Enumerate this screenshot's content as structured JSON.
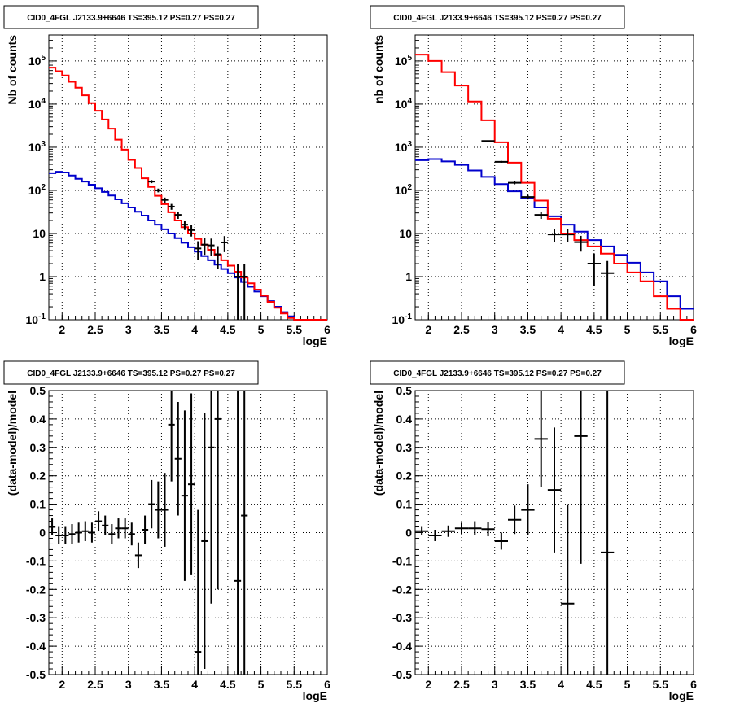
{
  "chart_data": [
    {
      "panel": "top-left",
      "type": "line",
      "title": "CID0_4FGL J2133.9+6646 TS=395.12 PS=0.27 PS=0.27",
      "xlabel": "logE",
      "ylabel": "Nb of counts",
      "yscale": "log",
      "xlim": [
        1.8,
        6.0
      ],
      "ylim": [
        0.1,
        400000
      ],
      "xticks": [
        "2",
        "2.5",
        "3",
        "3.5",
        "4",
        "4.5",
        "5",
        "5.5",
        "6"
      ],
      "yticks": [
        "10^-1",
        "1",
        "10",
        "10^2",
        "10^3",
        "10^4",
        "10^5"
      ],
      "grid": true,
      "series_colors": {
        "total_model": "#ff0000",
        "source_model": "#0000cc",
        "data": "#000000"
      },
      "bin_edges": [
        1.8,
        1.9,
        2.0,
        2.1,
        2.2,
        2.3,
        2.4,
        2.5,
        2.6,
        2.7,
        2.8,
        2.9,
        3.0,
        3.1,
        3.2,
        3.3,
        3.4,
        3.5,
        3.6,
        3.7,
        3.8,
        3.9,
        4.0,
        4.1,
        4.2,
        4.3,
        4.4,
        4.5,
        4.6,
        4.7,
        4.8,
        4.9,
        5.0,
        5.1,
        5.2,
        5.3,
        5.4,
        5.5,
        5.6,
        5.7,
        5.8,
        5.9,
        6.0
      ],
      "total_model": [
        70000,
        58000,
        46000,
        33000,
        24000,
        16000,
        10500,
        7000,
        4400,
        2700,
        1500,
        880,
        510,
        330,
        190,
        120,
        75,
        48,
        31,
        20,
        14,
        10,
        7.5,
        5.5,
        4.2,
        3.2,
        2.4,
        1.8,
        1.3,
        0.95,
        0.7,
        0.5,
        0.36,
        0.26,
        0.19,
        0.14,
        0.11,
        0.1,
        0.1,
        0.1,
        0.1,
        0.1
      ],
      "source_model": [
        250,
        270,
        260,
        220,
        185,
        160,
        135,
        112,
        92,
        76,
        62,
        50,
        40,
        32,
        26,
        20,
        16,
        12.5,
        10,
        7.8,
        6.1,
        4.8,
        3.8,
        3.0,
        2.4,
        1.9,
        1.5,
        1.2,
        0.95,
        0.75,
        0.58,
        0.45,
        0.35,
        0.27,
        0.2,
        0.15,
        0.12,
        0.1,
        0.1,
        0.1,
        0.1,
        0.1
      ],
      "data_points": [
        {
          "x": 3.35,
          "y": 160,
          "err": 13
        },
        {
          "x": 3.45,
          "y": 100,
          "err": 10
        },
        {
          "x": 3.55,
          "y": 60,
          "err": 8
        },
        {
          "x": 3.65,
          "y": 42,
          "err": 6.5
        },
        {
          "x": 3.75,
          "y": 27,
          "err": 5.2
        },
        {
          "x": 3.85,
          "y": 16,
          "err": 4
        },
        {
          "x": 3.95,
          "y": 12,
          "err": 3.5
        },
        {
          "x": 4.05,
          "y": 4.5,
          "err": 2.1
        },
        {
          "x": 4.15,
          "y": 5.5,
          "err": 2.3
        },
        {
          "x": 4.25,
          "y": 5.3,
          "err": 2.3
        },
        {
          "x": 4.35,
          "y": 3.3,
          "err": 1.8
        },
        {
          "x": 4.45,
          "y": 6.2,
          "err": 2.5
        },
        {
          "x": 4.65,
          "y": 1.0,
          "err": 1.0
        },
        {
          "x": 4.75,
          "y": 1.0,
          "err": 1.0
        }
      ]
    },
    {
      "panel": "top-right",
      "type": "line",
      "title": "CID0_4FGL J2133.9+6646 TS=395.12 PS=0.27 PS=0.27",
      "xlabel": "logE",
      "ylabel": "nb of counts",
      "yscale": "log",
      "xlim": [
        1.8,
        6.0
      ],
      "ylim": [
        0.1,
        400000
      ],
      "xticks": [
        "2",
        "2.5",
        "3",
        "3.5",
        "4",
        "4.5",
        "5",
        "5.5",
        "6"
      ],
      "yticks": [
        "10^-1",
        "1",
        "10",
        "10^2",
        "10^3",
        "10^4",
        "10^5"
      ],
      "grid": true,
      "series_colors": {
        "total_model": "#ff0000",
        "source_model": "#0000cc",
        "data": "#000000"
      },
      "bin_edges": [
        1.8,
        2.0,
        2.2,
        2.4,
        2.6,
        2.8,
        3.0,
        3.2,
        3.4,
        3.6,
        3.8,
        4.0,
        4.2,
        4.4,
        4.6,
        4.8,
        5.0,
        5.2,
        5.4,
        5.6,
        5.8,
        6.0
      ],
      "total_model": [
        140000,
        100000,
        55000,
        27000,
        11500,
        4200,
        1300,
        440,
        150,
        58,
        22,
        10,
        7,
        5,
        3.4,
        2.0,
        1.25,
        0.78,
        0.35,
        0.18,
        0.1
      ],
      "source_model": [
        500,
        530,
        470,
        390,
        290,
        205,
        140,
        95,
        65,
        40,
        25,
        16,
        11,
        7,
        5,
        3.2,
        2.1,
        1.25,
        0.78,
        0.35,
        0.18
      ],
      "data_points": [
        {
          "x": 2.9,
          "y": 1400,
          "err": 38
        },
        {
          "x": 3.1,
          "y": 460,
          "err": 22
        },
        {
          "x": 3.3,
          "y": 150,
          "err": 12
        },
        {
          "x": 3.5,
          "y": 70,
          "err": 8.5
        },
        {
          "x": 3.7,
          "y": 27,
          "err": 5.2
        },
        {
          "x": 3.9,
          "y": 9.5,
          "err": 3.1
        },
        {
          "x": 4.1,
          "y": 9.5,
          "err": 3.1
        },
        {
          "x": 4.3,
          "y": 6.3,
          "err": 2.5
        },
        {
          "x": 4.5,
          "y": 2.0,
          "err": 1.4
        },
        {
          "x": 4.7,
          "y": 1.2,
          "err": 1.1
        }
      ]
    },
    {
      "panel": "bottom-left",
      "type": "scatter",
      "title": "CID0_4FGL J2133.9+6646 TS=395.12 PS=0.27 PS=0.27",
      "xlabel": "logE",
      "ylabel": "(data-model)/model",
      "xlim": [
        1.8,
        6.0
      ],
      "ylim": [
        -0.5,
        0.5
      ],
      "xticks": [
        "2",
        "2.5",
        "3",
        "3.5",
        "4",
        "4.5",
        "5",
        "5.5",
        "6"
      ],
      "yticks": [
        "-0.5",
        "-0.4",
        "-0.3",
        "-0.2",
        "-0.1",
        "0",
        "0.1",
        "0.2",
        "0.3",
        "0.4",
        "0.5"
      ],
      "grid": true,
      "points": [
        {
          "x": 1.85,
          "y": 0.02,
          "err": 0.03
        },
        {
          "x": 1.95,
          "y": -0.01,
          "err": 0.03
        },
        {
          "x": 2.05,
          "y": -0.01,
          "err": 0.03
        },
        {
          "x": 2.15,
          "y": -0.005,
          "err": 0.035
        },
        {
          "x": 2.25,
          "y": 0.0,
          "err": 0.035
        },
        {
          "x": 2.35,
          "y": 0.005,
          "err": 0.035
        },
        {
          "x": 2.45,
          "y": 0.0,
          "err": 0.035
        },
        {
          "x": 2.55,
          "y": 0.04,
          "err": 0.035
        },
        {
          "x": 2.65,
          "y": 0.025,
          "err": 0.035
        },
        {
          "x": 2.75,
          "y": -0.005,
          "err": 0.035
        },
        {
          "x": 2.85,
          "y": 0.015,
          "err": 0.035
        },
        {
          "x": 2.95,
          "y": 0.015,
          "err": 0.035
        },
        {
          "x": 3.05,
          "y": -0.005,
          "err": 0.04
        },
        {
          "x": 3.15,
          "y": -0.08,
          "err": 0.045
        },
        {
          "x": 3.25,
          "y": 0.01,
          "err": 0.05
        },
        {
          "x": 3.35,
          "y": 0.1,
          "err": 0.085
        },
        {
          "x": 3.45,
          "y": 0.08,
          "err": 0.1
        },
        {
          "x": 3.55,
          "y": 0.08,
          "err": 0.13
        },
        {
          "x": 3.65,
          "y": 0.38,
          "err": 0.2
        },
        {
          "x": 3.75,
          "y": 0.26,
          "err": 0.2
        },
        {
          "x": 3.85,
          "y": 0.13,
          "err": 0.3
        },
        {
          "x": 3.95,
          "y": 0.17,
          "err": 0.32
        },
        {
          "x": 4.05,
          "y": -0.42,
          "err": 0.5
        },
        {
          "x": 4.15,
          "y": -0.03,
          "err": 0.45
        },
        {
          "x": 4.25,
          "y": 0.3,
          "err": 0.55
        },
        {
          "x": 4.35,
          "y": 0.4,
          "err": 0.6
        },
        {
          "x": 4.65,
          "y": -0.17,
          "err": 1.0
        },
        {
          "x": 4.75,
          "y": 0.06,
          "err": 1.0
        }
      ]
    },
    {
      "panel": "bottom-right",
      "type": "scatter",
      "title": "CID0_4FGL J2133.9+6646 TS=395.12 PS=0.27 PS=0.27",
      "xlabel": "logE",
      "ylabel": "(data-model)/model",
      "xlim": [
        1.8,
        6.0
      ],
      "ylim": [
        -0.5,
        0.5
      ],
      "xticks": [
        "2",
        "2.5",
        "3",
        "3.5",
        "4",
        "4.5",
        "5",
        "5.5",
        "6"
      ],
      "yticks": [
        "-0.5",
        "-0.4",
        "-0.3",
        "-0.2",
        "-0.1",
        "0",
        "0.1",
        "0.2",
        "0.3",
        "0.4",
        "0.5"
      ],
      "grid": true,
      "points": [
        {
          "x": 1.9,
          "y": 0.005,
          "err": 0.015
        },
        {
          "x": 2.1,
          "y": -0.01,
          "err": 0.02
        },
        {
          "x": 2.3,
          "y": 0.005,
          "err": 0.02
        },
        {
          "x": 2.5,
          "y": 0.015,
          "err": 0.02
        },
        {
          "x": 2.7,
          "y": 0.015,
          "err": 0.025
        },
        {
          "x": 2.9,
          "y": 0.012,
          "err": 0.025
        },
        {
          "x": 3.1,
          "y": -0.03,
          "err": 0.03
        },
        {
          "x": 3.3,
          "y": 0.045,
          "err": 0.05
        },
        {
          "x": 3.5,
          "y": 0.08,
          "err": 0.09
        },
        {
          "x": 3.7,
          "y": 0.33,
          "err": 0.17
        },
        {
          "x": 3.9,
          "y": 0.15,
          "err": 0.22
        },
        {
          "x": 4.1,
          "y": -0.25,
          "err": 0.35
        },
        {
          "x": 4.3,
          "y": 0.34,
          "err": 0.45
        },
        {
          "x": 4.7,
          "y": -0.07,
          "err": 0.95
        }
      ]
    }
  ]
}
